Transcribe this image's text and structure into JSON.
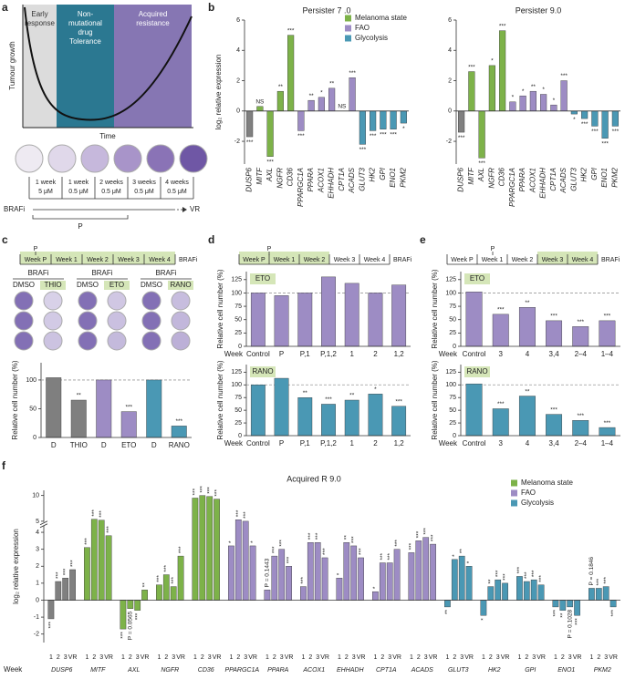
{
  "panel_labels": [
    "a",
    "b",
    "c",
    "d",
    "e",
    "f"
  ],
  "panel_a": {
    "ylabel": "Tumour growth",
    "xlabel": "Time",
    "regions": [
      {
        "lines": [
          "Early",
          "response"
        ]
      },
      {
        "lines": [
          "Non-",
          "mutational",
          "drug",
          "Tolerance"
        ]
      },
      {
        "lines": [
          "Acquired",
          "resistance"
        ]
      }
    ],
    "schedule": [
      [
        "1 week",
        "5 μM"
      ],
      [
        "1 week",
        "0.5 μM"
      ],
      [
        "2 weeks",
        "0.5 μM"
      ],
      [
        "3 weeks",
        "0.5 μM"
      ],
      [
        "4 weeks",
        "0.5 μM"
      ]
    ],
    "drug": "BRAFi",
    "start": "P",
    "end": "VR"
  },
  "timeline": {
    "weeks": [
      "Week P",
      "Week 1",
      "Week 2",
      "Week 3",
      "Week 4"
    ],
    "drug": "BRAFi",
    "marker": "P"
  },
  "plates": {
    "drug": "BRAFi",
    "conditions": [
      [
        "DMSO",
        "THIO"
      ],
      [
        "DMSO",
        "ETO"
      ],
      [
        "DMSO",
        "RANO"
      ]
    ]
  },
  "chart_data": [
    {
      "type": "bar",
      "title": "Persister 7 .0",
      "ylabel": "log₂ relative expression",
      "categories": [
        "DUSP6",
        "MITF",
        "AXL",
        "NGFR",
        "CD36",
        "PPARGC1A",
        "PPARA",
        "ACOX1",
        "EHHADH",
        "CPT1A",
        "ACADS",
        "GLUT3",
        "HK2",
        "GPI",
        "ENO1",
        "PKM2"
      ],
      "values": [
        -1.7,
        0.3,
        -3.0,
        1.3,
        5.0,
        -1.3,
        0.7,
        0.9,
        1.5,
        0.0,
        2.2,
        -2.2,
        -1.3,
        -1.2,
        -1.2,
        -0.8
      ],
      "annotations": [
        "***",
        "NS",
        "***",
        "**",
        "***",
        "***",
        "**",
        "*",
        "**",
        "NS",
        "***",
        "***",
        "***",
        "***",
        "***",
        "*"
      ],
      "colors": [
        "#808080",
        "#7db249",
        "#7db249",
        "#7db249",
        "#7db249",
        "#9d8cc4",
        "#9d8cc4",
        "#9d8cc4",
        "#9d8cc4",
        "#9d8cc4",
        "#9d8cc4",
        "#4a98b4",
        "#4a98b4",
        "#4a98b4",
        "#4a98b4",
        "#4a98b4"
      ],
      "ylim": [
        -3.5,
        6
      ],
      "yticks": [
        -2,
        0,
        2,
        4,
        6
      ],
      "legend": [
        {
          "name": "Melanoma state",
          "color": "#7db249"
        },
        {
          "name": "FAO",
          "color": "#9d8cc4"
        },
        {
          "name": "Glycolysis",
          "color": "#4a98b4"
        }
      ]
    },
    {
      "type": "bar",
      "title": "Persister 9.0",
      "categories": [
        "DUSP6",
        "MITF",
        "AXL",
        "NGFR",
        "CD36",
        "PPARGC1A",
        "PPARA",
        "ACOX1",
        "EHHADH",
        "CPT1A",
        "ACADS",
        "GLUT3",
        "HK2",
        "GPI",
        "ENO1",
        "PKM2"
      ],
      "values": [
        -1.4,
        2.6,
        -3.1,
        3.0,
        5.3,
        0.6,
        1.0,
        1.3,
        1.1,
        0.4,
        2.0,
        -0.2,
        -0.5,
        -1.0,
        -1.8,
        -1.0
      ],
      "annotations": [
        "***",
        "***",
        "***",
        "*",
        "***",
        "*",
        "*",
        "**",
        "*",
        "*",
        "***",
        "*",
        "***",
        "***",
        "***",
        "***"
      ],
      "colors": [
        "#808080",
        "#7db249",
        "#7db249",
        "#7db249",
        "#7db249",
        "#9d8cc4",
        "#9d8cc4",
        "#9d8cc4",
        "#9d8cc4",
        "#9d8cc4",
        "#9d8cc4",
        "#4a98b4",
        "#4a98b4",
        "#4a98b4",
        "#4a98b4",
        "#4a98b4"
      ],
      "ylim": [
        -3.5,
        6
      ],
      "yticks": [
        -2,
        0,
        2,
        4,
        6
      ]
    },
    {
      "type": "bar",
      "ylabel": "Relative cell number (%)",
      "categories": [
        "D",
        "THIO",
        "D",
        "ETO",
        "D",
        "RANO"
      ],
      "values": [
        104,
        65,
        100,
        45,
        100,
        20
      ],
      "annotations": [
        null,
        "**",
        null,
        "***",
        null,
        "***"
      ],
      "colors": [
        "#7f7f7f",
        "#7f7f7f",
        "#9d8cc4",
        "#9d8cc4",
        "#4a98b4",
        "#4a98b4"
      ],
      "ylim": [
        0,
        130
      ],
      "yticks": [
        0,
        50,
        100
      ],
      "refline": 100
    },
    {
      "type": "bar",
      "tag": "ETO",
      "xlabel": "Week",
      "ylabel": "Relative cell number (%)",
      "categories": [
        "Control",
        "P",
        "P,1",
        "P,1,2",
        "1",
        "2",
        "1,2"
      ],
      "values": [
        100,
        95,
        100,
        130,
        118,
        100,
        115
      ],
      "color": "#9d8cc4",
      "ylim": [
        0,
        140
      ],
      "yticks": [
        0,
        25,
        50,
        75,
        100,
        125
      ],
      "refline": 100
    },
    {
      "type": "bar",
      "tag": "RANO",
      "xlabel": "Week",
      "ylabel": "Relative cell number (%)",
      "categories": [
        "Control",
        "P",
        "P,1",
        "P,1,2",
        "1",
        "2",
        "1,2"
      ],
      "values": [
        100,
        113,
        75,
        62,
        70,
        82,
        58
      ],
      "annotations": [
        null,
        null,
        "**",
        "***",
        "**",
        "*",
        "***"
      ],
      "color": "#4a98b4",
      "ylim": [
        0,
        140
      ],
      "yticks": [
        0,
        25,
        50,
        75,
        100,
        125
      ],
      "refline": 100
    },
    {
      "type": "bar",
      "tag": "ETO",
      "xlabel": "Week",
      "ylabel": "Relative cell number (%)",
      "categories": [
        "Control",
        "3",
        "4",
        "3,4",
        "2–4",
        "1–4"
      ],
      "values": [
        102,
        60,
        73,
        48,
        37,
        48
      ],
      "annotations": [
        null,
        "***",
        "**",
        "***",
        "***",
        "***"
      ],
      "color": "#9d8cc4",
      "ylim": [
        0,
        140
      ],
      "yticks": [
        0,
        25,
        50,
        75,
        100,
        125
      ],
      "refline": 100
    },
    {
      "type": "bar",
      "tag": "RANO",
      "xlabel": "Week",
      "ylabel": "Relative cell number (%)",
      "categories": [
        "Control",
        "3",
        "4",
        "3,4",
        "2–4",
        "1–4"
      ],
      "values": [
        102,
        53,
        78,
        42,
        30,
        16
      ],
      "annotations": [
        null,
        "***",
        "**",
        "***",
        "***",
        "***"
      ],
      "color": "#4a98b4",
      "ylim": [
        0,
        140
      ],
      "yticks": [
        0,
        25,
        50,
        75,
        100,
        125
      ],
      "refline": 100
    },
    {
      "type": "grouped_bar",
      "title": "Acquired R 9.0",
      "ylabel": "log₂ relative expression",
      "xlabel": "Week",
      "groups": [
        "DUSP6",
        "MITF",
        "AXL",
        "NGFR",
        "CD36",
        "PPARGC1A",
        "PPARA",
        "ACOX1",
        "EHHADH",
        "CPT1A",
        "ACADS",
        "GLUT3",
        "HK2",
        "GPI",
        "ENO1",
        "PKM2"
      ],
      "categories": [
        "1",
        "2",
        "3",
        "VR"
      ],
      "values": [
        [
          -1.1,
          1.1,
          1.3,
          1.8
        ],
        [
          3.1,
          5.4,
          5.2,
          3.8
        ],
        [
          -1.7,
          -0.5,
          -0.6,
          0.6
        ],
        [
          0.9,
          1.5,
          0.8,
          2.6
        ],
        [
          9.5,
          10,
          9.8,
          9.3
        ],
        [
          3.2,
          5.3,
          5.0,
          3.2
        ],
        [
          0.6,
          2.6,
          3.0,
          2.0
        ],
        [
          0.8,
          3.4,
          3.4,
          2.5
        ],
        [
          1.3,
          3.4,
          3.2,
          2.5
        ],
        [
          0.5,
          2.2,
          2.2,
          3.0
        ],
        [
          2.8,
          3.5,
          3.7,
          3.3
        ],
        [
          -0.4,
          2.4,
          2.6,
          2.0
        ],
        [
          -0.9,
          0.8,
          1.2,
          1.0
        ],
        [
          1.4,
          1.1,
          1.2,
          0.9
        ],
        [
          -0.4,
          -0.6,
          -0.4,
          -0.9
        ],
        [
          0.7,
          0.7,
          0.8,
          -0.4
        ]
      ],
      "annotations": [
        [
          "***",
          "***",
          "***",
          "***"
        ],
        [
          "***",
          "***",
          "***",
          "***"
        ],
        [
          "***",
          "P = 0.0565",
          "***",
          "**"
        ],
        [
          "***",
          "***",
          "***",
          "***"
        ],
        [
          "***",
          "***",
          "***",
          "***"
        ],
        [
          "*",
          "***",
          "***",
          "*"
        ],
        [
          "P = 0.1443",
          "***",
          "***",
          "***"
        ],
        [
          "***",
          "***",
          "***",
          "***"
        ],
        [
          "*",
          "**",
          "***",
          "***"
        ],
        [
          "*",
          "***",
          "***",
          "***"
        ],
        [
          "***",
          "***",
          "***",
          "***"
        ],
        [
          "**",
          "*",
          "**",
          "*"
        ],
        [
          "*",
          "**",
          "***",
          "***"
        ],
        [
          "***",
          "***",
          "***",
          "***"
        ],
        [
          "***",
          "**",
          "P = 0.1028",
          "***"
        ],
        [
          "P = 0.1846",
          "***",
          "***",
          "***"
        ]
      ],
      "colors": [
        "#808080",
        "#7db249",
        "#7db249",
        "#7db249",
        "#7db249",
        "#9d8cc4",
        "#9d8cc4",
        "#9d8cc4",
        "#9d8cc4",
        "#9d8cc4",
        "#9d8cc4",
        "#4a98b4",
        "#4a98b4",
        "#4a98b4",
        "#4a98b4",
        "#4a98b4"
      ],
      "ylim": [
        -2.5,
        11
      ],
      "ybreak": 4.5,
      "yticks": [
        -2,
        -1,
        0,
        1,
        2,
        3,
        4,
        5,
        10
      ],
      "legend": [
        {
          "name": "Melanoma state",
          "color": "#7db249"
        },
        {
          "name": "FAO",
          "color": "#9d8cc4"
        },
        {
          "name": "Glycolysis",
          "color": "#4a98b4"
        }
      ]
    }
  ]
}
